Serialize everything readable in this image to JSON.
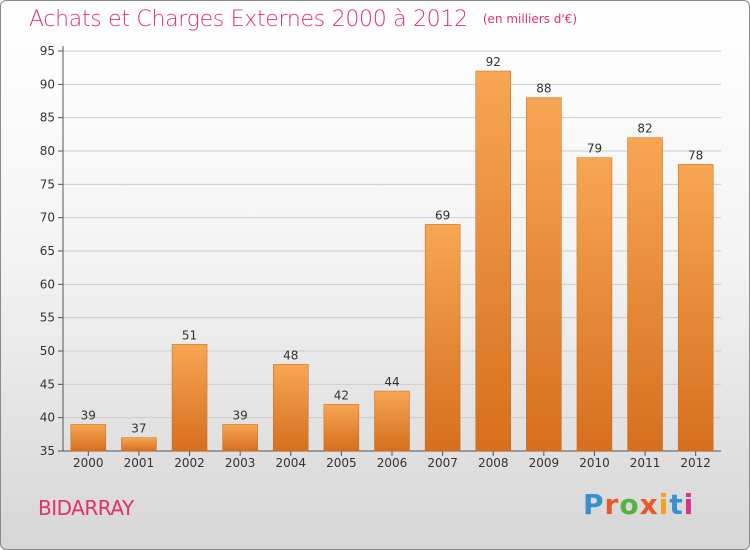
{
  "header": {
    "title": "Achats et Charges Externes 2000 à 2012",
    "unit": "(en milliers d'€)"
  },
  "footer": {
    "commune": "BIDARRAY",
    "brand": "Proxiti",
    "brand_colors": [
      "#3a8fd1",
      "#e9572a",
      "#55b33d",
      "#e9572a",
      "#f2a21d",
      "#3a8fd1",
      "#d9308c"
    ]
  },
  "colors": {
    "title": "#e0316e",
    "bar_top": "#f7a653",
    "bar_bottom": "#d66f1e",
    "grid": "#cccccc"
  },
  "chart_data": {
    "type": "bar",
    "title": "Achats et Charges Externes 2000 à 2012",
    "subtitle": "(en milliers d'€)",
    "categories": [
      "2000",
      "2001",
      "2002",
      "2003",
      "2004",
      "2005",
      "2006",
      "2007",
      "2008",
      "2009",
      "2010",
      "2011",
      "2012"
    ],
    "values": [
      39,
      37,
      51,
      39,
      48,
      42,
      44,
      69,
      92,
      88,
      79,
      82,
      78
    ],
    "ylim": [
      35,
      95
    ],
    "yticks": [
      35,
      40,
      45,
      50,
      55,
      60,
      65,
      70,
      75,
      80,
      85,
      90,
      95
    ],
    "grid": true,
    "xlabel": "",
    "ylabel": ""
  }
}
